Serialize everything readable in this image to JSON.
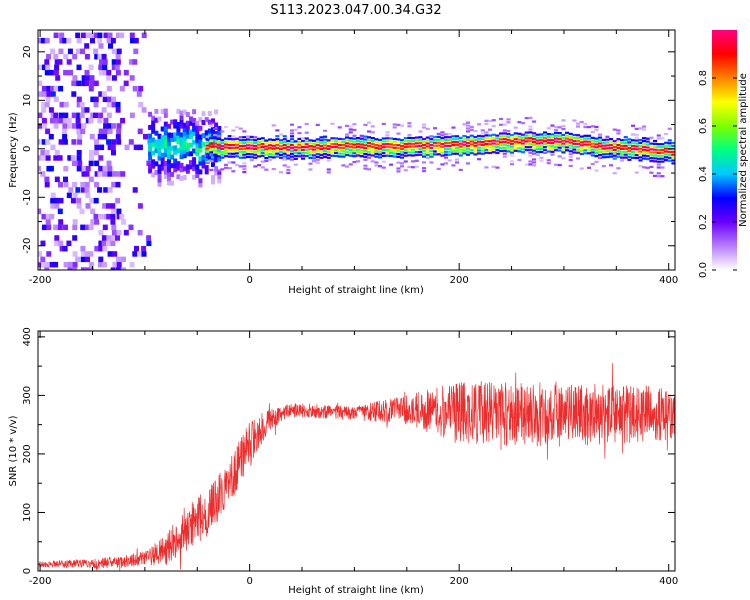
{
  "figure": {
    "title": "S113.2023.047.00.34.G32"
  },
  "chart_data": [
    {
      "type": "heatmap",
      "xlabel": "Height of straight line (km)",
      "ylabel": "Frequency (Hz)",
      "xlim": [
        -202,
        406
      ],
      "ylim": [
        -25,
        24.5
      ],
      "xticks": [
        -200,
        0,
        200,
        400
      ],
      "yticks": [
        -20,
        -10,
        0,
        10,
        20
      ],
      "grid": false,
      "colorbar": {
        "label": "Normalized spectral amplitude",
        "range": [
          0,
          1
        ],
        "ticks": [
          "0.0",
          "0.2",
          "0.4",
          "0.6",
          "0.8"
        ],
        "colormap": [
          "#ffffff",
          "#b77cff",
          "#6a00ff",
          "#0000ff",
          "#00c8ff",
          "#00ff7f",
          "#7fff00",
          "#ffff00",
          "#ff8000",
          "#ff0000",
          "#ff0080"
        ]
      },
      "features": {
        "noise_region_x": [
          -202,
          -95
        ],
        "transition_region_x": [
          -95,
          -40
        ],
        "ridge_frequency_hz": [
          [
            -40,
            0.5
          ],
          [
            0,
            0.3
          ],
          [
            50,
            0.2
          ],
          [
            100,
            0.5
          ],
          [
            150,
            0.4
          ],
          [
            200,
            0.8
          ],
          [
            250,
            1.5
          ],
          [
            300,
            1.5
          ],
          [
            340,
            0.3
          ],
          [
            406,
            -0.8
          ]
        ]
      }
    },
    {
      "type": "line",
      "xlabel": "Height of straight line (km)",
      "ylabel": "SNR (10 * v/v)",
      "xlim": [
        -202,
        406
      ],
      "ylim": [
        0,
        410
      ],
      "xticks": [
        -200,
        0,
        200,
        400
      ],
      "yticks": [
        0,
        100,
        200,
        300,
        400
      ],
      "grid": false,
      "series": [
        {
          "color": "#ee2c2c",
          "trend": {
            "x": [
              -202,
              -150,
              -120,
              -100,
              -80,
              -60,
              -40,
              -20,
              0,
              20,
              40,
              100,
              150,
              200,
              250,
              300,
              350,
              406
            ],
            "y": [
              12,
              12,
              16,
              22,
              35,
              75,
              100,
              150,
              215,
              260,
              275,
              270,
              275,
              270,
              268,
              266,
              268,
              270
            ]
          },
          "spread": {
            "x": [
              -202,
              -100,
              -60,
              0,
              30,
              100,
              150,
              200,
              300,
              406
            ],
            "y": [
              5,
              12,
              40,
              40,
              12,
              12,
              25,
              55,
              55,
              45
            ]
          }
        }
      ]
    }
  ]
}
